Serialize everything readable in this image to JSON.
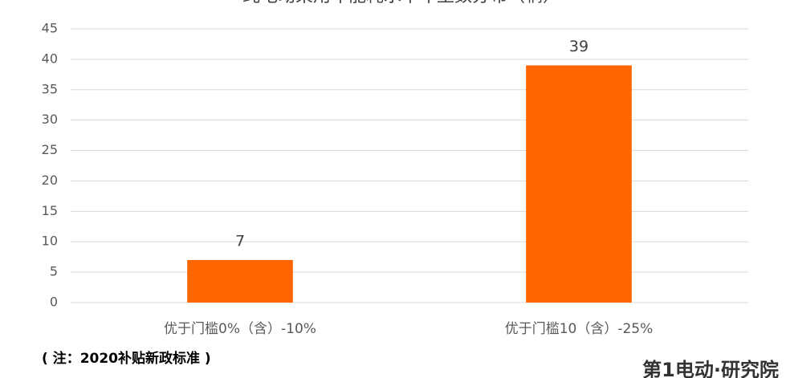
{
  "chart_data": {
    "type": "bar",
    "title": "纯电动乘用车能耗水平车型数分布（辆）",
    "categories": [
      "优于门槛0%（含）-10%",
      "优于门槛10（含）-25%"
    ],
    "values": [
      7,
      39
    ],
    "color": "#ff6600",
    "ylim": [
      0,
      45
    ],
    "yticks": [
      0,
      5,
      10,
      15,
      20,
      25,
      30,
      35,
      40,
      45
    ],
    "grid": true,
    "note": "( 注：2020补贴新政标准 )",
    "brand": "第1电动·研究院"
  }
}
